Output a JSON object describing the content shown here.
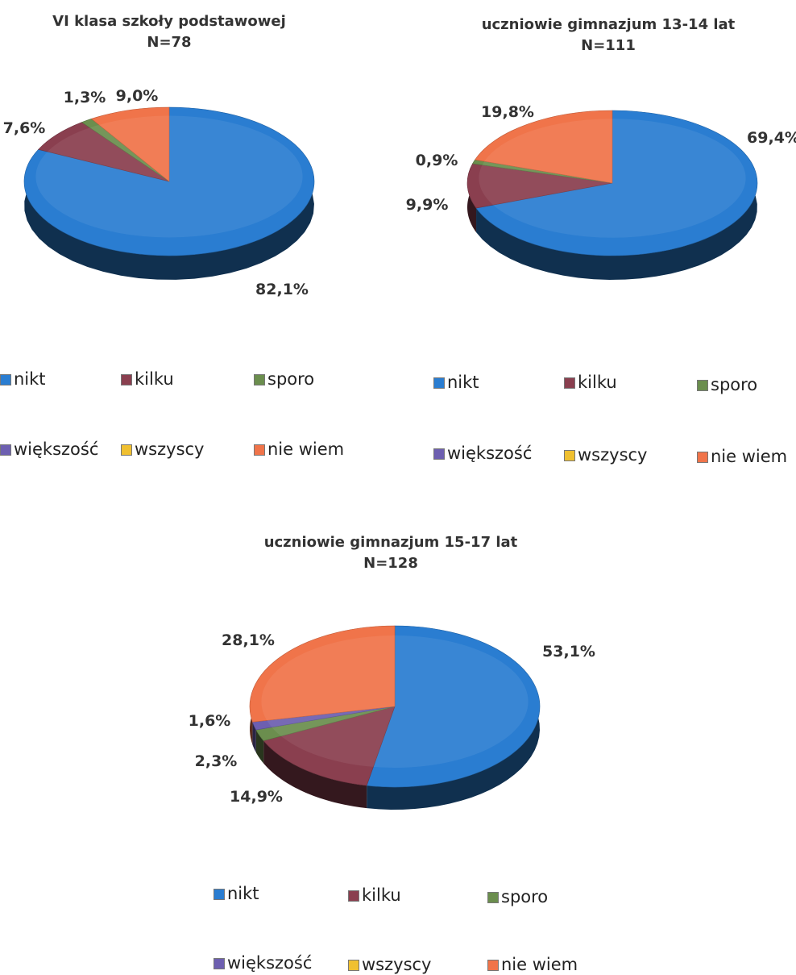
{
  "colors": {
    "nikt": "#2a7dd1",
    "kilku": "#8a3f4f",
    "sporo": "#6b8e4e",
    "wiekszosc": "#6d5fb0",
    "wszyscy": "#f0c030",
    "nie_wiem": "#f0744a"
  },
  "legend": {
    "nikt": "nikt",
    "kilku": "kilku",
    "sporo": "sporo",
    "wiekszosc": "większość",
    "wszyscy": "wszyscy",
    "nie_wiem": "nie wiem"
  },
  "chart_data": [
    {
      "type": "pie",
      "title": "VI klasa szkoły podstawowej",
      "subtitle": "N=78",
      "categories": [
        "nikt",
        "kilku",
        "sporo",
        "większość",
        "wszyscy",
        "nie wiem"
      ],
      "values": [
        82.1,
        7.6,
        1.3,
        0,
        0,
        9.0
      ],
      "labels": [
        "82,1%",
        "7,6%",
        "1,3%",
        "",
        "",
        "9,0%"
      ],
      "legend_position": "bottom"
    },
    {
      "type": "pie",
      "title": "uczniowie gimnazjum 13-14 lat",
      "subtitle": "N=111",
      "categories": [
        "nikt",
        "kilku",
        "sporo",
        "większość",
        "wszyscy",
        "nie wiem"
      ],
      "values": [
        69.4,
        9.9,
        0.9,
        0,
        0,
        19.8
      ],
      "labels": [
        "69,4%",
        "9,9%",
        "0,9%",
        "",
        "",
        "19,8%"
      ],
      "legend_position": "bottom"
    },
    {
      "type": "pie",
      "title": "uczniowie gimnazjum 15-17 lat",
      "subtitle": "N=128",
      "categories": [
        "nikt",
        "kilku",
        "sporo",
        "większość",
        "wszyscy",
        "nie wiem"
      ],
      "values": [
        53.1,
        14.9,
        2.3,
        1.6,
        0,
        28.1
      ],
      "labels": [
        "53,1%",
        "14,9%",
        "2,3%",
        "1,6%",
        "",
        "28,1%"
      ],
      "legend_position": "bottom"
    }
  ]
}
